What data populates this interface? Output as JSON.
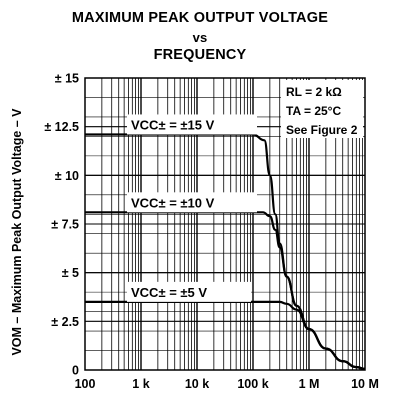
{
  "chart_data": {
    "type": "line",
    "title": [
      "MAXIMUM PEAK OUTPUT VOLTAGE",
      "vs",
      "FREQUENCY"
    ],
    "xlabel": "f – Frequency – Hz",
    "ylabel": "VOM – Maximum Peak Output Voltage – V",
    "xscale": "log",
    "xlim": [
      100,
      10000000
    ],
    "ylim": [
      0,
      15
    ],
    "xtick_labels": [
      "100",
      "1 k",
      "10 k",
      "100 k",
      "1 M",
      "10 M"
    ],
    "ytick_labels": [
      "0",
      "± 2.5",
      "± 5",
      "± 7.5",
      "± 10",
      "± 12.5",
      "± 15"
    ],
    "grid": true,
    "conditions": [
      "RL = 2 kΩ",
      "TA = 25°C",
      "See Figure 2"
    ],
    "series": [
      {
        "name": "VCC± = ±15 V",
        "x": [
          100,
          100000,
          160000,
          200000,
          250000,
          300000,
          400000,
          600000,
          1000000,
          2000000,
          4000000,
          7000000,
          10000000
        ],
        "y": [
          12.1,
          12.1,
          11.8,
          10.0,
          8.0,
          6.5,
          4.8,
          3.3,
          2.1,
          1.1,
          0.45,
          0.15,
          0.05
        ]
      },
      {
        "name": "VCC± = ±10 V",
        "x": [
          100,
          150000,
          200000,
          250000,
          300000,
          400000,
          600000,
          1000000,
          2000000,
          4000000,
          7000000,
          10000000
        ],
        "y": [
          8.1,
          8.1,
          7.9,
          7.2,
          6.3,
          4.8,
          3.3,
          2.1,
          1.1,
          0.45,
          0.15,
          0.05
        ]
      },
      {
        "name": "VCC± = ±5 V",
        "x": [
          100,
          300000,
          400000,
          600000,
          1000000,
          2000000,
          4000000,
          7000000,
          10000000
        ],
        "y": [
          3.5,
          3.5,
          3.4,
          3.1,
          2.1,
          1.1,
          0.45,
          0.15,
          0.05
        ]
      }
    ]
  }
}
